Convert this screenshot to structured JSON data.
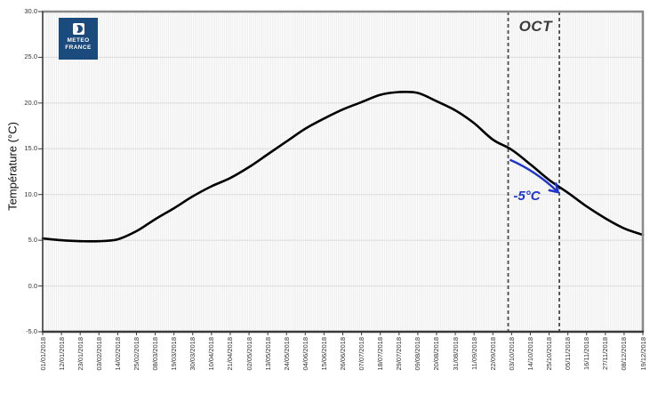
{
  "logo": {
    "name": "Météo France",
    "line1": "METEO",
    "line2": "FRANCE",
    "bg_color": "#1b4a7c"
  },
  "colors": {
    "curve": "#000000",
    "annotation_blue": "#1e35cf",
    "dashed_line": "#4a4a4a",
    "grid": "#dcdcdc",
    "stripe": "#e9e9e9",
    "axis_text": "#333333",
    "month_text": "#3b3b3b",
    "border_gray": "#8a8a8a",
    "axis_dark": "#3a3a3a"
  },
  "chart_data": {
    "type": "line",
    "title": "",
    "ylabel": "Température (°C)",
    "ylim": [
      -5,
      30
    ],
    "y_tick_labels": [
      "30.0",
      "25.0",
      "20.0",
      "15.0",
      "10.0",
      "5.0",
      "0.0",
      "-5.0"
    ],
    "x_tick_labels": [
      "01/01/2018",
      "12/01/2018",
      "23/01/2018",
      "03/02/2018",
      "14/02/2018",
      "25/02/2018",
      "08/03/2018",
      "19/03/2018",
      "30/03/2018",
      "10/04/2018",
      "21/04/2018",
      "02/05/2018",
      "13/05/2018",
      "24/05/2018",
      "04/06/2018",
      "15/06/2018",
      "26/06/2018",
      "07/07/2018",
      "18/07/2018",
      "29/07/2018",
      "09/08/2018",
      "20/08/2018",
      "31/08/2018",
      "11/09/2018",
      "22/09/2018",
      "03/10/2018",
      "14/10/2018",
      "25/10/2018",
      "05/11/2018",
      "16/11/2018",
      "27/11/2018",
      "08/12/2018",
      "19/12/2018"
    ],
    "values": [
      5.2,
      5.0,
      4.9,
      4.9,
      5.1,
      6.0,
      7.3,
      8.5,
      9.8,
      10.9,
      11.8,
      13.0,
      14.4,
      15.8,
      17.2,
      18.3,
      19.3,
      20.1,
      20.9,
      21.2,
      21.1,
      20.2,
      19.2,
      17.8,
      16.0,
      14.9,
      13.3,
      11.6,
      10.2,
      8.7,
      7.4,
      6.3,
      5.6
    ],
    "grid": "horizontal lines every 5°C, fine vertical daily stripes",
    "legend_position": "none",
    "annotations": {
      "month": {
        "label": "OCT",
        "start_date": "01/10/2018",
        "end_date": "31/10/2018"
      },
      "arrow": {
        "label": "-5°C",
        "from_date": "02/10/2018",
        "from_temp": 13.8,
        "to_date": "30/10/2018",
        "to_temp": 10.3
      }
    }
  }
}
